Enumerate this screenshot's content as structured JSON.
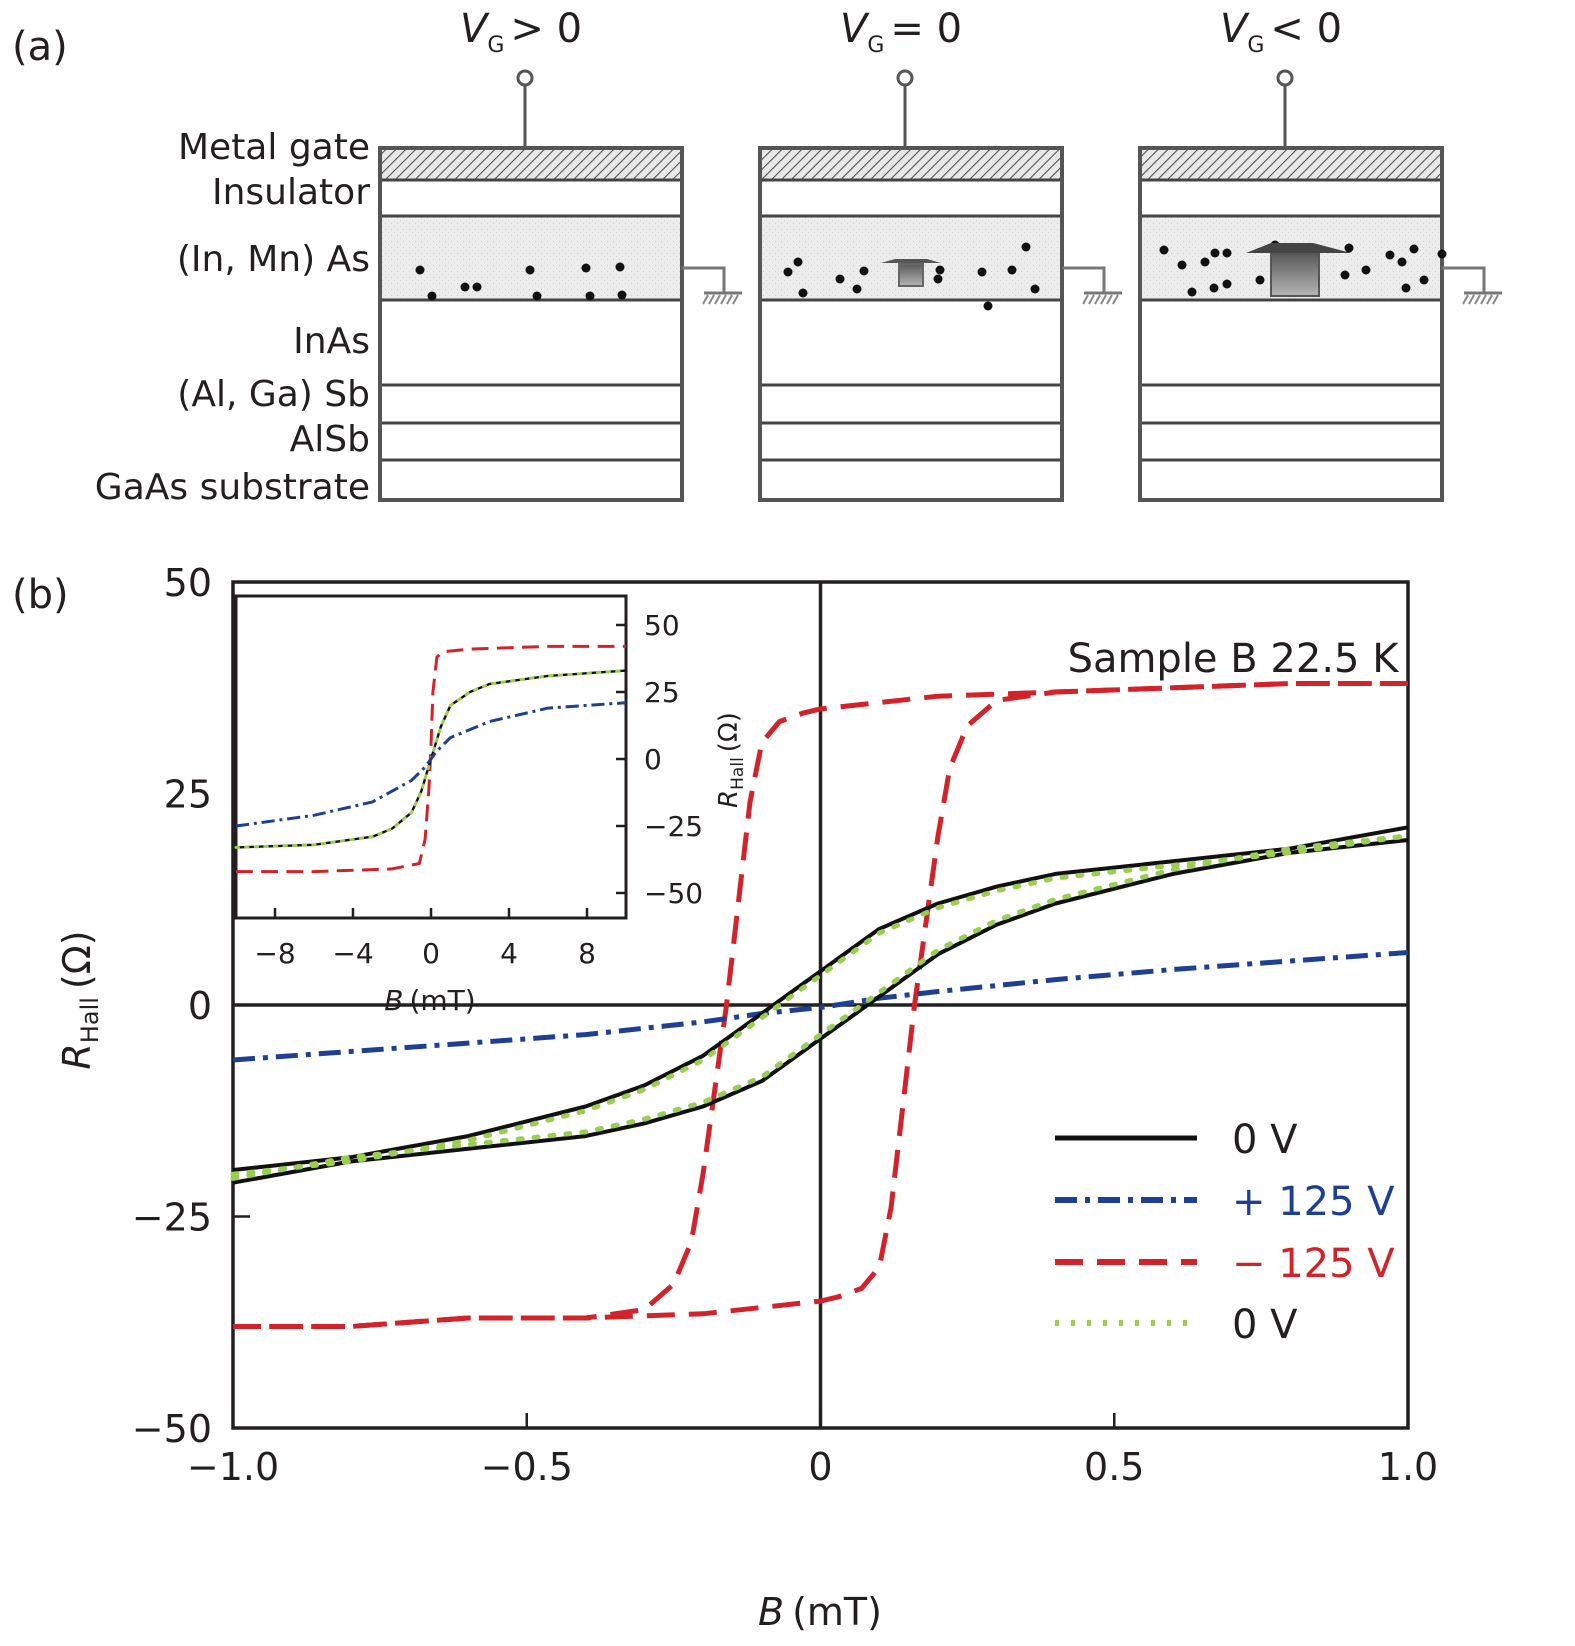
{
  "panel_a": {
    "label": "(a)",
    "layer_labels": [
      "Metal gate",
      "Insulator",
      "(In, Mn) As",
      "InAs",
      "(Al, Ga) Sb",
      "AlSb",
      "GaAs substrate"
    ],
    "devices": [
      {
        "gate_label_var": "V",
        "gate_label_sub": "G",
        "gate_label_rel": "> 0",
        "island_size": "none"
      },
      {
        "gate_label_var": "V",
        "gate_label_sub": "G",
        "gate_label_rel": "= 0",
        "island_size": "small"
      },
      {
        "gate_label_var": "V",
        "gate_label_sub": "G",
        "gate_label_rel": "< 0",
        "island_size": "large"
      }
    ],
    "icons": [
      "gate-terminal-icon",
      "ground-icon",
      "mn-dopant-dot-icon",
      "ferromagnetic-island-icon"
    ]
  },
  "panel_b": {
    "label": "(b)"
  },
  "colors": {
    "black": "#111111",
    "blue": "#1f3f93",
    "red": "#d2232a",
    "green": "#9acd50",
    "axis": "#231f20"
  },
  "chart_data": [
    {
      "id": "main",
      "type": "line",
      "title": "",
      "annotation": "Sample B 22.5 K",
      "xlabel_var": "B",
      "xlabel_unit": "(mT)",
      "ylabel_var": "R",
      "ylabel_sub": "Hall",
      "ylabel_unit": "(Ω)",
      "xlim": [
        -1.0,
        1.0
      ],
      "ylim": [
        -50,
        50
      ],
      "xticks": [
        -1.0,
        -0.5,
        0,
        0.5,
        1.0
      ],
      "xtick_labels": [
        "−1.0",
        "−0.5",
        "0",
        "0.5",
        "1.0"
      ],
      "yticks": [
        50,
        25,
        0,
        -25,
        -50
      ],
      "ytick_labels": [
        "50",
        "25",
        "0",
        "−25",
        "−50"
      ],
      "zero_lines": true,
      "grid": false,
      "legend_position": "bottom-right",
      "legend": [
        {
          "label": "0 V",
          "style": "solid",
          "color": "#111111"
        },
        {
          "label": "+ 125 V",
          "style": "dashdot",
          "color": "#1f3f93"
        },
        {
          "label": "− 125 V",
          "style": "dashed",
          "color": "#d2232a"
        },
        {
          "label": "0 V",
          "style": "dotted",
          "color": "#9acd50"
        }
      ],
      "series": [
        {
          "name": "0 V (solid)",
          "style": "solid",
          "color": "#111111",
          "branches": [
            {
              "x": [
                -1.0,
                -0.8,
                -0.6,
                -0.4,
                -0.3,
                -0.2,
                -0.15,
                -0.1,
                -0.05,
                0.0,
                0.05,
                0.1,
                0.2,
                0.3,
                0.4,
                0.6,
                0.8,
                1.0
              ],
              "y": [
                -19.5,
                -18,
                -15.5,
                -12,
                -9.5,
                -6,
                -3.5,
                -1,
                1.5,
                4,
                6.5,
                9,
                12,
                14,
                15.5,
                17,
                18.5,
                21
              ]
            },
            {
              "x": [
                -1.0,
                -0.8,
                -0.6,
                -0.4,
                -0.3,
                -0.2,
                -0.1,
                -0.05,
                0.0,
                0.05,
                0.1,
                0.15,
                0.2,
                0.3,
                0.4,
                0.6,
                0.8,
                1.0
              ],
              "y": [
                -21,
                -18.5,
                -17,
                -15.5,
                -14,
                -12,
                -9,
                -6.5,
                -4,
                -1.5,
                1,
                3.5,
                6,
                9.5,
                12,
                15.5,
                18,
                19.5
              ]
            }
          ]
        },
        {
          "name": "+125 V",
          "style": "dashdot",
          "color": "#1f3f93",
          "branches": [
            {
              "x": [
                -1.0,
                -0.8,
                -0.6,
                -0.4,
                -0.2,
                -0.1,
                0.0,
                0.1,
                0.2,
                0.4,
                0.6,
                0.8,
                1.0
              ],
              "y": [
                -6.5,
                -5.5,
                -4.5,
                -3.5,
                -2,
                -1,
                -0.3,
                0.8,
                1.6,
                3,
                4.2,
                5.2,
                6.2
              ]
            }
          ]
        },
        {
          "name": "−125 V",
          "style": "dashed",
          "color": "#d2232a",
          "branches": [
            {
              "x": [
                -1.0,
                -0.8,
                -0.6,
                -0.4,
                -0.3,
                -0.25,
                -0.22,
                -0.2,
                -0.18,
                -0.16,
                -0.14,
                -0.12,
                -0.1,
                -0.07,
                -0.03,
                0.0,
                0.2,
                0.4,
                0.6,
                0.8,
                1.0
              ],
              "y": [
                -38,
                -38,
                -37,
                -37,
                -36,
                -33,
                -28,
                -20,
                -10,
                0,
                12,
                24,
                31,
                33.5,
                34.5,
                35,
                36.5,
                37,
                37.5,
                38,
                38
              ]
            },
            {
              "x": [
                1.0,
                0.8,
                0.6,
                0.4,
                0.3,
                0.25,
                0.22,
                0.2,
                0.18,
                0.16,
                0.14,
                0.12,
                0.1,
                0.07,
                0.03,
                0.0,
                -0.2,
                -0.4,
                -0.6,
                -0.8,
                -1.0
              ],
              "y": [
                38,
                38,
                37.5,
                37,
                36,
                33,
                28,
                20,
                10,
                0,
                -12,
                -24,
                -31,
                -33.5,
                -34.5,
                -35,
                -36.5,
                -37,
                -37,
                -38,
                -38
              ]
            }
          ]
        },
        {
          "name": "0 V (dotted)",
          "style": "dotted",
          "color": "#9acd50",
          "branches": [
            {
              "x": [
                -1.0,
                -0.8,
                -0.6,
                -0.4,
                -0.3,
                -0.2,
                -0.15,
                -0.1,
                -0.05,
                0.0,
                0.05,
                0.1,
                0.2,
                0.3,
                0.4,
                0.6,
                0.8,
                1.0
              ],
              "y": [
                -20,
                -18.5,
                -16,
                -12.5,
                -10,
                -6.5,
                -4,
                -1.5,
                1,
                3.5,
                6,
                8.5,
                11.5,
                13.5,
                15,
                16.5,
                18,
                20
              ]
            },
            {
              "x": [
                -1.0,
                -0.8,
                -0.6,
                -0.4,
                -0.3,
                -0.2,
                -0.1,
                -0.05,
                0.0,
                0.05,
                0.1,
                0.15,
                0.2,
                0.3,
                0.4,
                0.6,
                0.8,
                1.0
              ],
              "y": [
                -20.5,
                -18,
                -16.5,
                -15,
                -13.5,
                -11.5,
                -8.5,
                -6,
                -3.5,
                -1,
                1.5,
                4,
                6.5,
                10,
                12.5,
                16,
                18.5,
                20
              ]
            }
          ]
        }
      ]
    },
    {
      "id": "inset",
      "type": "line",
      "title": "",
      "xlabel_var": "B",
      "xlabel_unit": "(mT)",
      "ylabel_var": "R",
      "ylabel_sub": "Hall",
      "ylabel_unit": "(Ω)",
      "xlim": [
        -10.0,
        10.0
      ],
      "ylim": [
        -62,
        62
      ],
      "xticks": [
        -8,
        -4,
        0,
        4,
        8
      ],
      "xtick_labels": [
        "−8",
        "−4",
        "0",
        "4",
        "8"
      ],
      "yticks": [
        50,
        25,
        0,
        -25,
        -50
      ],
      "ytick_labels": [
        "50",
        "25",
        "0",
        "−25",
        "−50"
      ],
      "yaxis_side": "right",
      "grid": false,
      "series": [
        {
          "name": "−125 V",
          "style": "dashed",
          "color": "#d2232a",
          "x": [
            -10,
            -6,
            -2,
            -0.6,
            -0.3,
            -0.1,
            0.0,
            0.1,
            0.3,
            0.6,
            2,
            6,
            10
          ],
          "y": [
            -42,
            -42,
            -41,
            -39,
            -30,
            -10,
            5,
            25,
            38,
            40,
            41,
            42,
            42
          ]
        },
        {
          "name": "0 V (solid)",
          "style": "solid",
          "color": "#111111",
          "x": [
            -10,
            -6,
            -3,
            -2,
            -1,
            -0.5,
            0.0,
            0.5,
            1,
            2,
            3,
            6,
            10
          ],
          "y": [
            -33,
            -32,
            -29,
            -26,
            -20,
            -12,
            0,
            12,
            20,
            25,
            28,
            31,
            33
          ]
        },
        {
          "name": "0 V (dotted)",
          "style": "dotted",
          "color": "#9acd50",
          "x": [
            -10,
            -6,
            -3,
            -2,
            -1,
            -0.5,
            0.0,
            0.5,
            1,
            2,
            3,
            6,
            10
          ],
          "y": [
            -33,
            -32,
            -29,
            -26,
            -20,
            -12,
            0,
            12,
            20,
            25,
            28,
            31,
            33
          ]
        },
        {
          "name": "+125 V",
          "style": "dashdot",
          "color": "#1f3f93",
          "x": [
            -10,
            -6,
            -3,
            -1,
            -0.3,
            0.0,
            0.3,
            1,
            3,
            6,
            10
          ],
          "y": [
            -25,
            -21,
            -16,
            -8,
            -3,
            0,
            3,
            8,
            14,
            19,
            21
          ]
        }
      ]
    }
  ]
}
